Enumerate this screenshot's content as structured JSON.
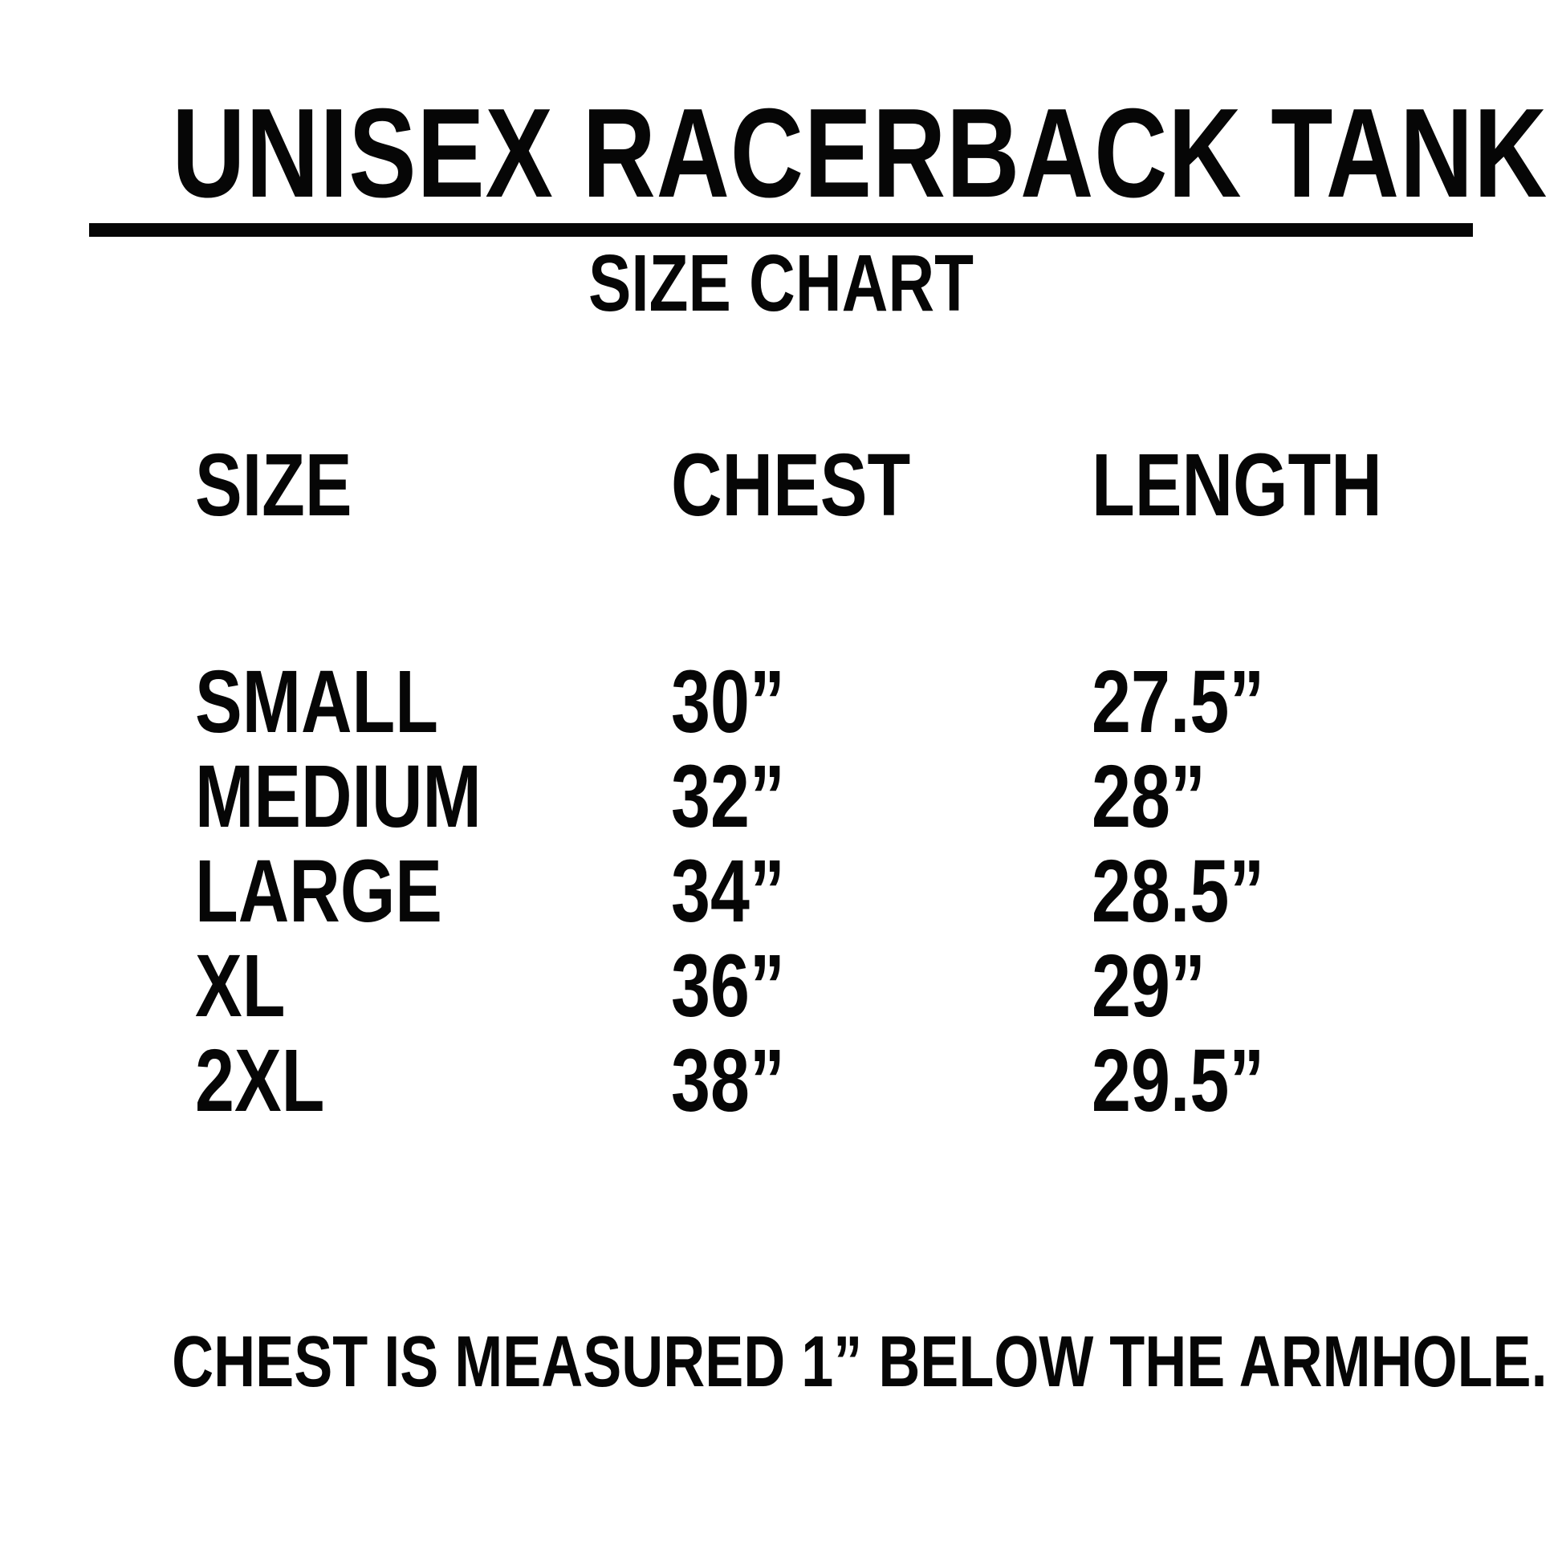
{
  "header": {
    "title": "UNISEX RACERBACK TANK",
    "subtitle": "SIZE CHART"
  },
  "table": {
    "headers": {
      "size": "SIZE",
      "chest": "CHEST",
      "length": "LENGTH"
    },
    "rows": [
      {
        "size": "SMALL",
        "chest": "30”",
        "length": "27.5”"
      },
      {
        "size": "MEDIUM",
        "chest": "32”",
        "length": "28”"
      },
      {
        "size": "LARGE",
        "chest": "34”",
        "length": "28.5”"
      },
      {
        "size": "XL",
        "chest": "36”",
        "length": "29”"
      },
      {
        "size": "2XL",
        "chest": "38”",
        "length": "29.5”"
      }
    ]
  },
  "footer": {
    "note": "CHEST IS MEASURED 1” BELOW THE ARMHOLE."
  },
  "colors": {
    "text": "#060606",
    "background": "#ffffff",
    "rule": "#060606"
  },
  "chart_data": {
    "type": "table",
    "title": "UNISEX RACERBACK TANK",
    "subtitle": "SIZE CHART",
    "columns": [
      "SIZE",
      "CHEST",
      "LENGTH"
    ],
    "rows": [
      [
        "SMALL",
        "30”",
        "27.5”"
      ],
      [
        "MEDIUM",
        "32”",
        "28”"
      ],
      [
        "LARGE",
        "34”",
        "28.5”"
      ],
      [
        "XL",
        "36”",
        "29”"
      ],
      [
        "2XL",
        "38”",
        "29.5”"
      ]
    ],
    "chest_values_inches": [
      30,
      32,
      34,
      36,
      38
    ],
    "length_values_inches": [
      27.5,
      28,
      28.5,
      29,
      29.5
    ],
    "note": "CHEST IS MEASURED 1” BELOW THE ARMHOLE."
  }
}
